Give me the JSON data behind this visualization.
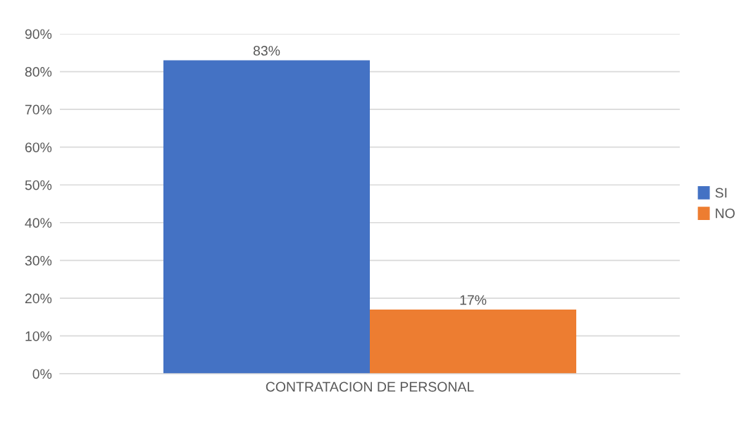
{
  "chart_data": {
    "type": "bar",
    "categories": [
      "CONTRATACION DE PERSONAL"
    ],
    "series": [
      {
        "name": "SI",
        "color": "#4472c4",
        "values": [
          83
        ],
        "value_labels": [
          "83%"
        ]
      },
      {
        "name": "NO",
        "color": "#ed7d31",
        "values": [
          17
        ],
        "value_labels": [
          "17%"
        ]
      }
    ],
    "ylim": [
      0,
      90
    ],
    "yticks": [
      {
        "value": 0,
        "label": "0%"
      },
      {
        "value": 10,
        "label": "10%"
      },
      {
        "value": 20,
        "label": "20%"
      },
      {
        "value": 30,
        "label": "30%"
      },
      {
        "value": 40,
        "label": "40%"
      },
      {
        "value": 50,
        "label": "50%"
      },
      {
        "value": 60,
        "label": "60%"
      },
      {
        "value": 70,
        "label": "70%"
      },
      {
        "value": 80,
        "label": "80%"
      },
      {
        "value": 90,
        "label": "90%"
      }
    ],
    "grid": "y",
    "legend": "right"
  }
}
